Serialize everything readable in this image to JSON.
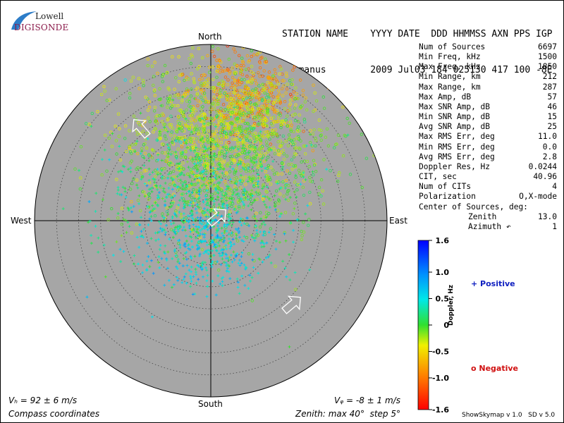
{
  "header": {
    "col_labels": "STATION NAME    YYYY DATE  DDD HHMMSS AXN PPS IGP",
    "values": "Hermanus        2009 Jul03 184 025130 417 100 -8E"
  },
  "logo": {
    "line1": "Lowell",
    "line2": "DIGISONDE"
  },
  "stats": [
    {
      "label": "Num of Sources",
      "value": "6697"
    },
    {
      "label": "Min Freq, kHz",
      "value": "1500"
    },
    {
      "label": "Max Freq, kHz",
      "value": "1850"
    },
    {
      "label": "Min Range, km",
      "value": "212"
    },
    {
      "label": "Max Range, km",
      "value": "287"
    },
    {
      "label": "Max Amp, dB",
      "value": "57"
    },
    {
      "label": "Max SNR Amp, dB",
      "value": "46"
    },
    {
      "label": "Min SNR Amp, dB",
      "value": "15"
    },
    {
      "label": "Avg SNR Amp, dB",
      "value": "25"
    },
    {
      "label": "Max RMS Err, deg",
      "value": "11.0"
    },
    {
      "label": "Min RMS Err, deg",
      "value": "0.0"
    },
    {
      "label": "Avg RMS Err, deg",
      "value": "2.8"
    },
    {
      "label": "Doppler Res, Hz",
      "value": "0.0244"
    },
    {
      "label": "CIT, sec",
      "value": "40.96"
    },
    {
      "label": "Num of CITs",
      "value": "4"
    },
    {
      "label": "Polarization",
      "value": "O,X-mode"
    }
  ],
  "center": {
    "title": "Center of Sources, deg:",
    "zenith_label": "Zenith",
    "zenith_value": "13.0",
    "azimuth_label": "Azimuth ↶",
    "azimuth_value": "1"
  },
  "compass": {
    "north": "North",
    "south": "South",
    "east": "East",
    "west": "West"
  },
  "footer": {
    "vh": "Vₕ = 92 ± 6 m/s",
    "vz": "Vᵩ = -8 ± 1 m/s",
    "coords": "Compass coordinates",
    "zenith": "Zenith: max 40°  step 5°",
    "version": "ShowSkymap v 1.0   SD v 5.0"
  },
  "legend": {
    "positive": "+ Positive",
    "negative": "o Negative"
  },
  "chart_data": {
    "type": "scatter",
    "projection": "polar-zenith",
    "zenith_max_deg": 40,
    "zenith_step_deg": 5,
    "color_scale": {
      "label": "Doppler, Hz",
      "min": -1.6,
      "max": 1.6,
      "ticks": [
        "1.6",
        "1.0",
        "0.5",
        "0",
        "-0.5",
        "-1.0",
        "-1.6"
      ],
      "tick_values": [
        1.6,
        1.0,
        0.5,
        0,
        -0.5,
        -1.0,
        -1.6
      ]
    },
    "clusters": [
      {
        "name": "orange",
        "doppler": -0.9,
        "azimuth_deg": 15,
        "zenith_deg": 30,
        "spread_deg": 5,
        "count": 400,
        "marker": "o"
      },
      {
        "name": "yellow",
        "doppler": -0.4,
        "azimuth_deg": 5,
        "zenith_deg": 20,
        "spread_deg": 8,
        "count": 900,
        "marker": "o"
      },
      {
        "name": "green-yellow",
        "doppler": -0.1,
        "azimuth_deg": 20,
        "zenith_deg": 15,
        "spread_deg": 9,
        "count": 700,
        "marker": "o"
      },
      {
        "name": "green",
        "doppler": 0.15,
        "azimuth_deg": 340,
        "zenith_deg": 6,
        "spread_deg": 8,
        "count": 600,
        "marker": "+"
      },
      {
        "name": "cyan",
        "doppler": 0.6,
        "azimuth_deg": 200,
        "zenith_deg": 5,
        "spread_deg": 6,
        "count": 400,
        "marker": "+"
      }
    ],
    "velocity_arrows": [
      {
        "name": "vh-arrow",
        "azimuth_deg": 45,
        "zenith_deg": 0
      },
      {
        "name": "arrow-ne-inner",
        "azimuth_deg": 315,
        "zenith_deg": 30
      },
      {
        "name": "arrow-se-outer",
        "azimuth_deg": 135,
        "zenith_deg": 25
      }
    ]
  }
}
